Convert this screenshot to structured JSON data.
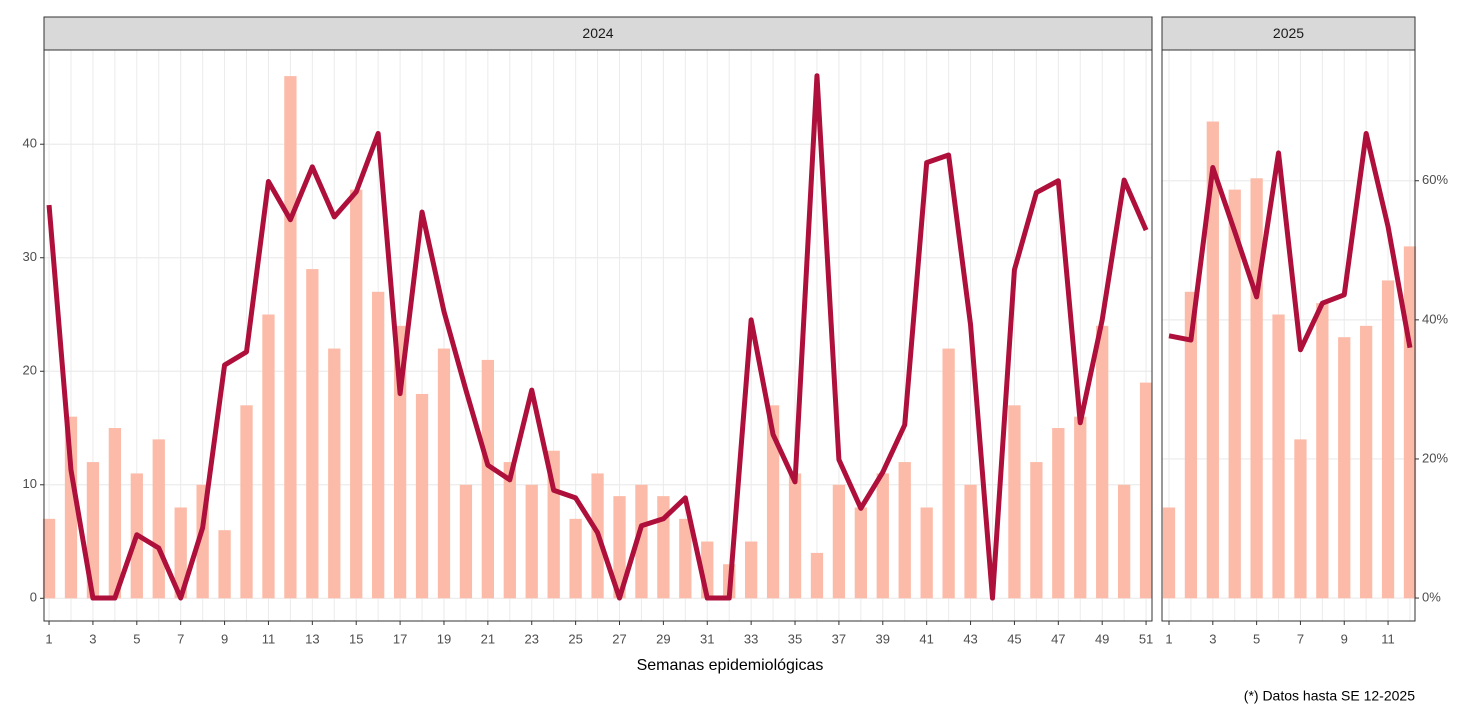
{
  "chart_data": [
    {
      "type": "bar-line",
      "title": "2024",
      "x": [
        1,
        2,
        3,
        4,
        5,
        6,
        7,
        8,
        9,
        10,
        11,
        12,
        13,
        14,
        15,
        16,
        17,
        18,
        19,
        20,
        21,
        22,
        23,
        24,
        25,
        26,
        27,
        28,
        29,
        30,
        31,
        32,
        33,
        34,
        35,
        36,
        37,
        38,
        39,
        40,
        41,
        42,
        43,
        44,
        45,
        46,
        47,
        48,
        49,
        50,
        51
      ],
      "xlim": [
        0.77,
        51.27
      ],
      "xticks": [
        1,
        3,
        5,
        7,
        9,
        11,
        13,
        15,
        17,
        19,
        21,
        23,
        25,
        27,
        29,
        31,
        33,
        35,
        37,
        39,
        41,
        43,
        45,
        47,
        49,
        51
      ],
      "ylim": [
        -2,
        48.3
      ],
      "yticks": [
        0,
        10,
        20,
        30,
        40
      ],
      "y2lim": [
        -3.3,
        78.8
      ],
      "xlabel": "Semanas epidemiológicas",
      "grid": true,
      "series": [
        {
          "color": "#fcbba8",
          "values": [
            7,
            16,
            12,
            15,
            11,
            14,
            8,
            10,
            6,
            17,
            25,
            46,
            29,
            22,
            36,
            27,
            24,
            18,
            22,
            10,
            21,
            12,
            10,
            13,
            7,
            11,
            9,
            10,
            9,
            7,
            5,
            3,
            5,
            17,
            11,
            4,
            10,
            8,
            11,
            12,
            8,
            22,
            10,
            0,
            17,
            12,
            15,
            16,
            24,
            10,
            19
          ]
        },
        {
          "color": "#ae0f3b",
          "axis": "y2",
          "values": [
            56.5,
            18.4,
            0,
            0,
            9.1,
            7.2,
            0,
            10.1,
            33.5,
            35.4,
            59.9,
            54.4,
            62,
            54.8,
            58.4,
            66.8,
            29.4,
            55.5,
            41.2,
            29.9,
            19.1,
            17,
            29.9,
            15.5,
            14.4,
            9.4,
            0,
            10.4,
            11.4,
            14.4,
            0,
            0,
            40,
            23.5,
            16.7,
            75.1,
            19.9,
            12.9,
            18.1,
            24.9,
            62.6,
            63.7,
            39.3,
            0,
            47.2,
            58.3,
            60,
            25.2,
            40,
            60.1,
            52.9
          ]
        }
      ]
    },
    {
      "type": "bar-line",
      "title": "2025",
      "x": [
        1,
        2,
        3,
        4,
        5,
        6,
        7,
        8,
        9,
        10,
        11,
        12
      ],
      "xlim": [
        0.68,
        12.23
      ],
      "xticks": [
        1,
        3,
        5,
        7,
        9,
        11
      ],
      "ylim": [
        -2,
        48.3
      ],
      "y2lim": [
        -3.3,
        78.8
      ],
      "y2ticks": [
        {
          "value": 0,
          "label": "0%"
        },
        {
          "value": 20,
          "label": "20%"
        },
        {
          "value": 40,
          "label": "40%"
        },
        {
          "value": 60,
          "label": "60%"
        }
      ],
      "grid": true,
      "series": [
        {
          "color": "#fcbba8",
          "values": [
            8,
            27,
            42,
            36,
            37,
            25,
            14,
            26,
            23,
            24,
            28,
            31
          ]
        },
        {
          "color": "#ae0f3b",
          "axis": "y2",
          "values": [
            37.7,
            37.1,
            61.9,
            52.7,
            43.3,
            64,
            35.7,
            42.4,
            43.6,
            66.8,
            53.4,
            36
          ]
        }
      ]
    }
  ],
  "caption": "(*) Datos hasta SE 12-2025"
}
